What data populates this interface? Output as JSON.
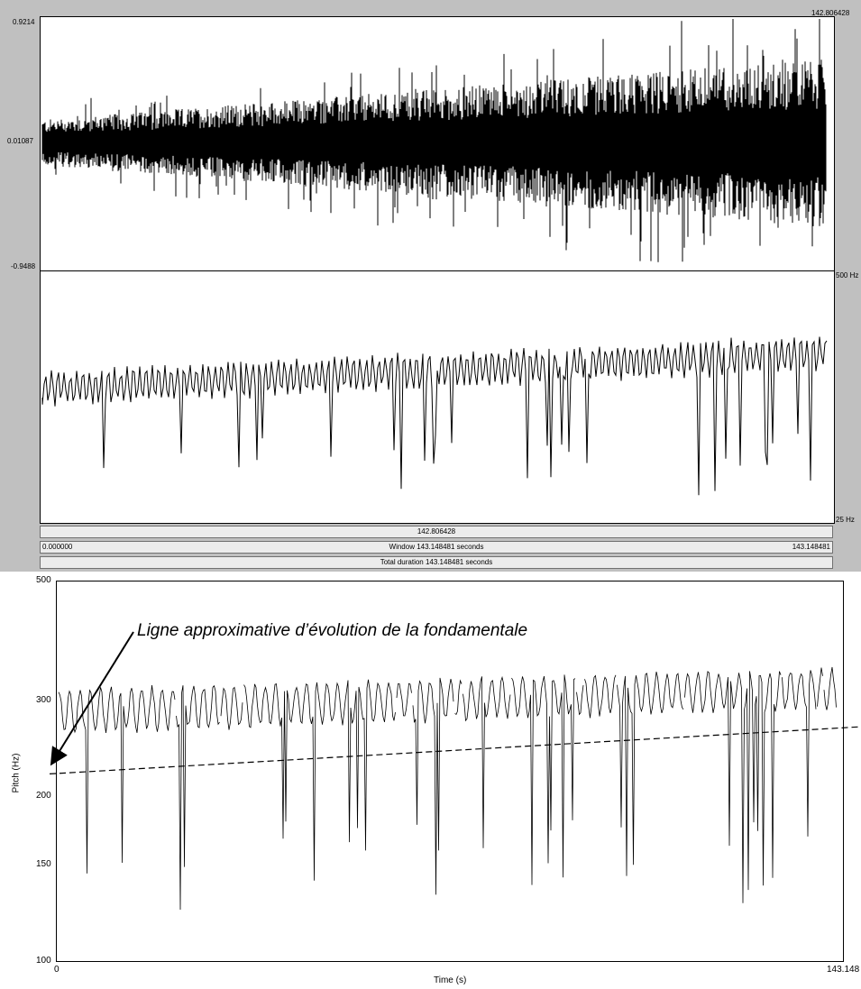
{
  "praat": {
    "cursor_time_top": "142.806428",
    "wave_max": "0.9214",
    "wave_mid": "0.01087",
    "wave_min": "-0.9488",
    "pitch_top": "500 Hz",
    "pitch_bottom": "25 Hz",
    "cursor_bar": "142.806428",
    "window_start": "0.000000",
    "window_label": "Window 143.148481 seconds",
    "window_end": "143.148481",
    "total_duration": "Total duration 143.148481 seconds"
  },
  "annotation": "Ligne approximative d’évolution de la fondamentale",
  "chart_data": {
    "type": "line",
    "title": "",
    "xlabel": "Time (s)",
    "ylabel": "Pitch (Hz)",
    "xlim": [
      0,
      143.148
    ],
    "ylim": [
      100,
      500
    ],
    "y_scale": "log",
    "x_tick_labels": [
      "0",
      "143.148"
    ],
    "y_tick_labels": [
      "100",
      "150",
      "200",
      "300",
      "500"
    ],
    "series": [
      {
        "style": "dashed",
        "x": [
          0,
          143.148
        ],
        "y": [
          222,
          271
        ]
      }
    ]
  }
}
